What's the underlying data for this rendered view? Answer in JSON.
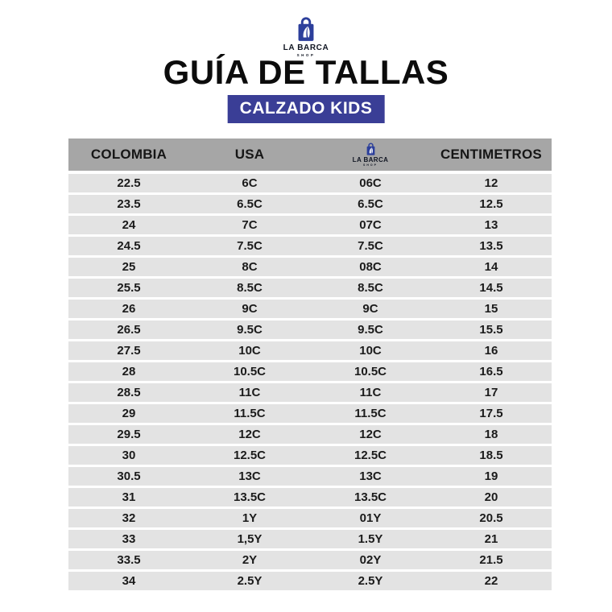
{
  "brand": {
    "name": "LA BARCA",
    "sub": "SHOP"
  },
  "title": "GUÍA DE TALLAS",
  "badge": "CALZADO KIDS",
  "colors": {
    "badge_blue": "#3a3e96",
    "logo_blue": "#2c3f9b",
    "header_gray": "#a6a6a6",
    "row_gray": "#e3e3e3",
    "text_black": "#1b1b1b"
  },
  "icons": {
    "brand_logo": "shopping-bag-icon"
  },
  "table": {
    "headers": [
      "COLOMBIA",
      "USA",
      "LA BARCA SHOP",
      "CENTIMETROS"
    ],
    "rows": [
      [
        "22.5",
        "6C",
        "06C",
        "12"
      ],
      [
        "23.5",
        "6.5C",
        "6.5C",
        "12.5"
      ],
      [
        "24",
        "7C",
        "07C",
        "13"
      ],
      [
        "24.5",
        "7.5C",
        "7.5C",
        "13.5"
      ],
      [
        "25",
        "8C",
        "08C",
        "14"
      ],
      [
        "25.5",
        "8.5C",
        "8.5C",
        "14.5"
      ],
      [
        "26",
        "9C",
        "9C",
        "15"
      ],
      [
        "26.5",
        "9.5C",
        "9.5C",
        "15.5"
      ],
      [
        "27.5",
        "10C",
        "10C",
        "16"
      ],
      [
        "28",
        "10.5C",
        "10.5C",
        "16.5"
      ],
      [
        "28.5",
        "11C",
        "11C",
        "17"
      ],
      [
        "29",
        "11.5C",
        "11.5C",
        "17.5"
      ],
      [
        "29.5",
        "12C",
        "12C",
        "18"
      ],
      [
        "30",
        "12.5C",
        "12.5C",
        "18.5"
      ],
      [
        "30.5",
        "13C",
        "13C",
        "19"
      ],
      [
        "31",
        "13.5C",
        "13.5C",
        "20"
      ],
      [
        "32",
        "1Y",
        "01Y",
        "20.5"
      ],
      [
        "33",
        "1,5Y",
        "1.5Y",
        "21"
      ],
      [
        "33.5",
        "2Y",
        "02Y",
        "21.5"
      ],
      [
        "34",
        "2.5Y",
        "2.5Y",
        "22"
      ]
    ]
  }
}
